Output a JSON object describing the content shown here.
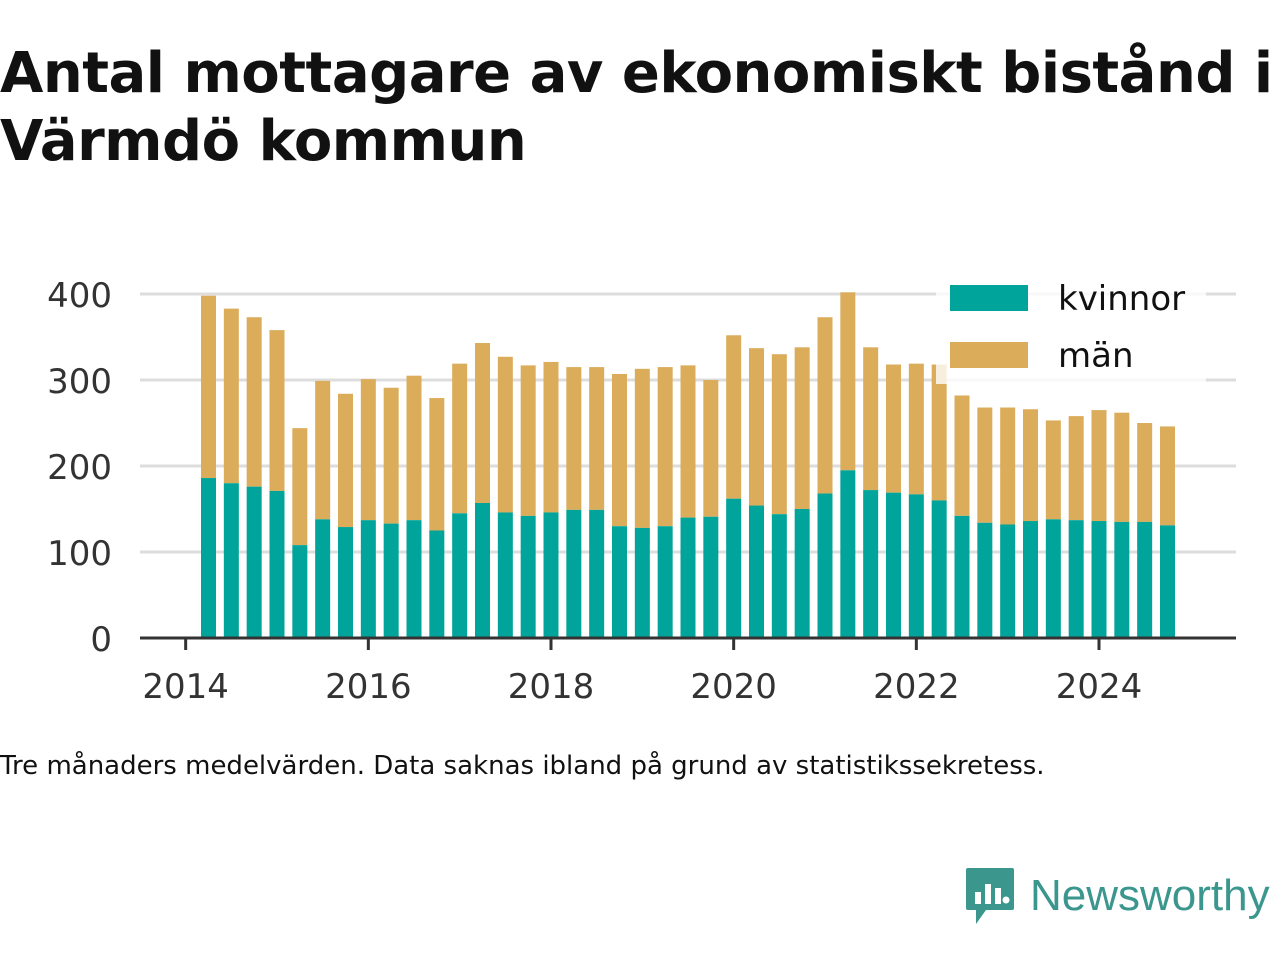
{
  "title": "Antal mottagare av ekonomiskt bistånd i Värmdö kommun",
  "note": "Tre månaders medelvärden. Data saknas ibland på grund av statistikssekretess.",
  "brand": {
    "name": "Newsworthy",
    "logo_icon": "newsworthy-logo-icon"
  },
  "colors": {
    "kvinnor": "#00a49a",
    "man": "#dbac5a",
    "grid": "#dddddd",
    "axis": "#333333",
    "text": "#333333"
  },
  "chart_data": {
    "type": "bar",
    "stacked": true,
    "x_ticks": [
      "2014",
      "2016",
      "2018",
      "2020",
      "2022",
      "2024"
    ],
    "x_range": [
      2013.5,
      2025.5
    ],
    "y_ticks": [
      "0",
      "100",
      "200",
      "300",
      "400"
    ],
    "ylim": [
      0,
      400
    ],
    "grid": true,
    "legend_position": "top-right",
    "x": [
      2014.25,
      2014.5,
      2014.75,
      2015.0,
      2015.25,
      2015.5,
      2015.75,
      2016.0,
      2016.25,
      2016.5,
      2016.75,
      2017.0,
      2017.25,
      2017.5,
      2017.75,
      2018.0,
      2018.25,
      2018.5,
      2018.75,
      2019.0,
      2019.25,
      2019.5,
      2019.75,
      2020.0,
      2020.25,
      2020.5,
      2020.75,
      2021.0,
      2021.25,
      2021.5,
      2021.75,
      2022.0,
      2022.25,
      2022.5,
      2022.75,
      2023.0,
      2023.25,
      2023.5,
      2023.75,
      2024.0,
      2024.25,
      2024.5,
      2024.75
    ],
    "series": [
      {
        "name": "kvinnor",
        "values": [
          186,
          180,
          176,
          171,
          108,
          138,
          129,
          137,
          133,
          137,
          125,
          145,
          157,
          146,
          142,
          146,
          149,
          149,
          130,
          128,
          130,
          140,
          141,
          162,
          154,
          144,
          150,
          168,
          195,
          172,
          169,
          167,
          160,
          142,
          134,
          132,
          136,
          138,
          137,
          136,
          135,
          135,
          131
        ]
      },
      {
        "name": "män",
        "values": [
          212,
          203,
          197,
          187,
          136,
          161,
          155,
          164,
          158,
          168,
          154,
          174,
          186,
          181,
          175,
          175,
          166,
          166,
          177,
          185,
          185,
          177,
          159,
          190,
          183,
          186,
          188,
          205,
          207,
          166,
          149,
          152,
          158,
          140,
          134,
          136,
          130,
          115,
          121,
          129,
          127,
          115,
          115
        ]
      }
    ]
  }
}
